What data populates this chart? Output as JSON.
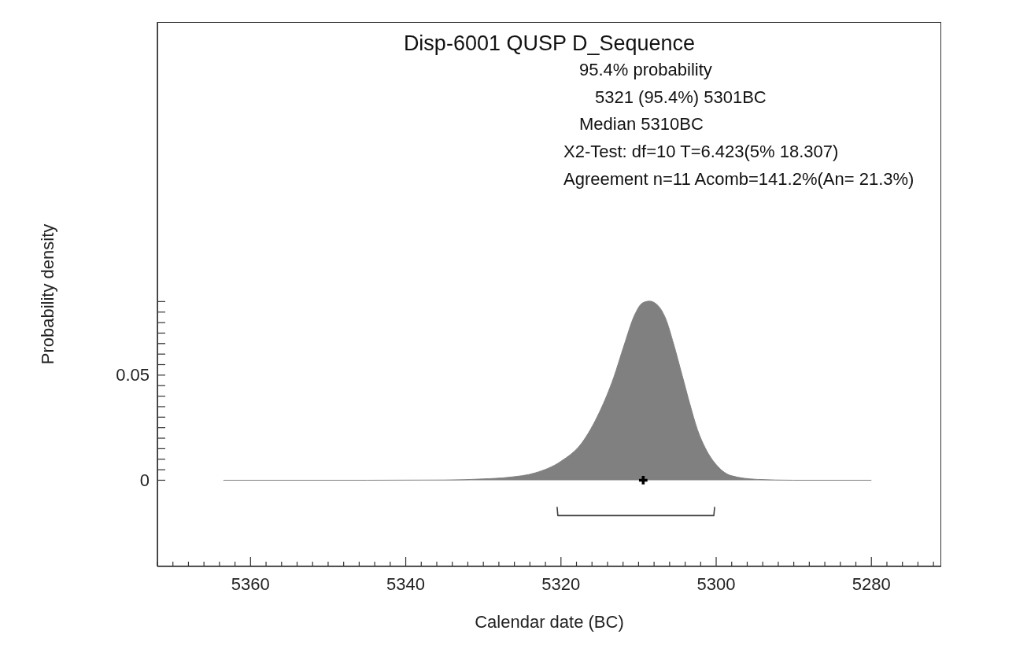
{
  "chart_data": {
    "type": "area",
    "title": "Disp-6001 QUSP D_Sequence",
    "xlabel": "Calendar date (BC)",
    "ylabel": "Probability density",
    "annotations": [
      "95.4% probability",
      "5321 (95.4%) 5301BC",
      "Median 5310BC",
      "X2-Test: df=10 T=6.423(5% 18.307)",
      "Agreement n=11 Acomb=141.2%(An= 21.3%)"
    ],
    "xlim": [
      5372,
      5271
    ],
    "xticks": [
      {
        "value": 5372,
        "label": null
      },
      {
        "value": 5370,
        "label": null
      },
      {
        "value": 5368,
        "label": null
      },
      {
        "value": 5366,
        "label": null
      },
      {
        "value": 5364,
        "label": null
      },
      {
        "value": 5362,
        "label": null
      },
      5360,
      {
        "value": 5358,
        "label": null
      },
      {
        "value": 5356,
        "label": null
      },
      {
        "value": 5354,
        "label": null
      },
      {
        "value": 5352,
        "label": null
      },
      {
        "value": 5350,
        "label": null
      },
      {
        "value": 5348,
        "label": null
      },
      {
        "value": 5346,
        "label": null
      },
      {
        "value": 5344,
        "label": null
      },
      {
        "value": 5342,
        "label": null
      },
      5340,
      {
        "value": 5338,
        "label": null
      },
      {
        "value": 5336,
        "label": null
      },
      {
        "value": 5334,
        "label": null
      },
      {
        "value": 5332,
        "label": null
      },
      {
        "value": 5330,
        "label": null
      },
      {
        "value": 5328,
        "label": null
      },
      {
        "value": 5326,
        "label": null
      },
      {
        "value": 5324,
        "label": null
      },
      {
        "value": 5322,
        "label": null
      },
      5320,
      {
        "value": 5318,
        "label": null
      },
      {
        "value": 5316,
        "label": null
      },
      {
        "value": 5314,
        "label": null
      },
      {
        "value": 5312,
        "label": null
      },
      {
        "value": 5310,
        "label": null
      },
      {
        "value": 5308,
        "label": null
      },
      {
        "value": 5306,
        "label": null
      },
      {
        "value": 5304,
        "label": null
      },
      {
        "value": 5302,
        "label": null
      },
      5300,
      {
        "value": 5298,
        "label": null
      },
      {
        "value": 5296,
        "label": null
      },
      {
        "value": 5294,
        "label": null
      },
      {
        "value": 5292,
        "label": null
      },
      {
        "value": 5290,
        "label": null
      },
      {
        "value": 5288,
        "label": null
      },
      {
        "value": 5286,
        "label": null
      },
      {
        "value": 5284,
        "label": null
      },
      {
        "value": 5282,
        "label": null
      },
      5280,
      {
        "value": 5278,
        "label": null
      },
      {
        "value": 5276,
        "label": null
      },
      {
        "value": 5274,
        "label": null
      },
      {
        "value": 5272,
        "label": null
      }
    ],
    "ylim": [
      -0.041,
      0.218
    ],
    "yticks": [
      0,
      {
        "value": 0.005,
        "label": null
      },
      {
        "value": 0.01,
        "label": null
      },
      {
        "value": 0.015,
        "label": null
      },
      {
        "value": 0.02,
        "label": null
      },
      {
        "value": 0.025,
        "label": null
      },
      {
        "value": 0.03,
        "label": null
      },
      {
        "value": 0.035,
        "label": null
      },
      {
        "value": 0.04,
        "label": null
      },
      {
        "value": 0.045,
        "label": null
      },
      0.05,
      {
        "value": 0.055,
        "label": null
      },
      {
        "value": 0.06,
        "label": null
      },
      {
        "value": 0.065,
        "label": null
      },
      {
        "value": 0.07,
        "label": null
      },
      {
        "value": 0.075,
        "label": null
      },
      {
        "value": 0.08,
        "label": null
      },
      {
        "value": 0.085,
        "label": null
      }
    ],
    "series": [
      {
        "color": "#808080",
        "x": [
          5363.5,
          5345,
          5335,
          5330.1,
          5326.7,
          5323.3,
          5320,
          5317.3,
          5315,
          5313.2,
          5311.9,
          5310.5,
          5309.5,
          5308.6,
          5307.5,
          5306.5,
          5305.5,
          5304.4,
          5303.4,
          5302.4,
          5301.4,
          5299.8,
          5298.1,
          5294.7,
          5290,
          5280
        ],
        "values": [
          0,
          0,
          0.0001,
          0.0006,
          0.0014,
          0.0035,
          0.009,
          0.0178,
          0.0327,
          0.0489,
          0.0638,
          0.0787,
          0.0843,
          0.0852,
          0.0831,
          0.0768,
          0.065,
          0.0501,
          0.0364,
          0.0239,
          0.0153,
          0.0066,
          0.0022,
          0.0004,
          0,
          0
        ]
      },
      {
        "type": "line",
        "color": "#404040",
        "x": [
          5320.5,
          5320.4,
          5300.3,
          5300.2
        ],
        "values": [
          -0.0127,
          -0.0168,
          -0.0168,
          -0.0127
        ]
      },
      {
        "type": "scatter",
        "color": "#000000",
        "marker": "cross",
        "x": [
          5309.4
        ],
        "values": [
          0
        ]
      }
    ]
  }
}
